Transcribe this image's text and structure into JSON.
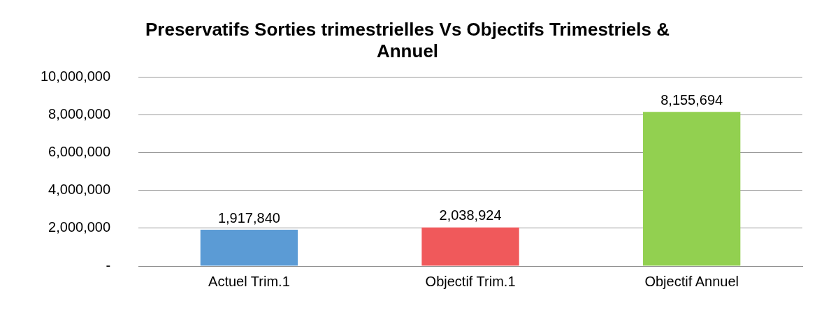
{
  "chart_data": {
    "type": "bar",
    "title": "Preservatifs Sorties trimestrielles Vs Objectifs Trimestriels & Annuel",
    "categories": [
      "Actuel Trim.1",
      "Objectif Trim.1",
      "Objectif Annuel"
    ],
    "values": [
      1917840,
      2038924,
      8155694
    ],
    "colors": [
      "#5b9bd5",
      "#f0595b",
      "#92d050"
    ],
    "ylim": [
      0,
      10000000
    ],
    "yticks": [
      {
        "value": 0,
        "label": "-"
      },
      {
        "value": 2000000,
        "label": "2,000,000"
      },
      {
        "value": 4000000,
        "label": "4,000,000"
      },
      {
        "value": 6000000,
        "label": "6,000,000"
      },
      {
        "value": 8000000,
        "label": "8,000,000"
      },
      {
        "value": 10000000,
        "label": "10,000,000"
      }
    ],
    "value_labels": [
      "1,917,840",
      "2,038,924",
      "8,155,694"
    ],
    "grid": "y",
    "legend": false
  }
}
